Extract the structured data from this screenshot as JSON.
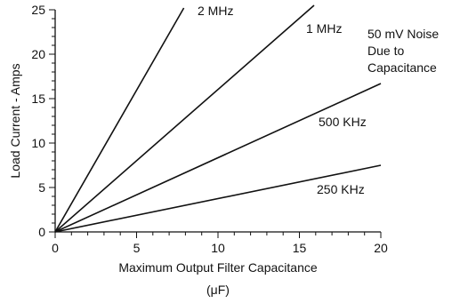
{
  "chart_data": {
    "type": "line",
    "title": "",
    "xlabel": "Maximum Output Filter Capacitance",
    "xunit": "(μF)",
    "ylabel": "Load Current - Amps",
    "xlim": [
      0,
      20
    ],
    "ylim": [
      0,
      25
    ],
    "xticks": [
      0,
      5,
      10,
      15,
      20
    ],
    "yticks": [
      0,
      5,
      10,
      15,
      20,
      25
    ],
    "grid": false,
    "annotation": [
      "50 mV Noise",
      "Due to",
      "Capacitance"
    ],
    "series": [
      {
        "name": "2 MHz",
        "x": [
          0,
          7.9
        ],
        "y": [
          0,
          25.2
        ]
      },
      {
        "name": "1 MHz",
        "x": [
          0,
          15.9
        ],
        "y": [
          0,
          25.5
        ]
      },
      {
        "name": "500 KHz",
        "x": [
          0,
          20
        ],
        "y": [
          0,
          16.7
        ]
      },
      {
        "name": "250 KHz",
        "x": [
          0,
          20
        ],
        "y": [
          0,
          7.5
        ]
      }
    ]
  },
  "colors": {
    "line": "#111111",
    "axis": "#111111"
  }
}
